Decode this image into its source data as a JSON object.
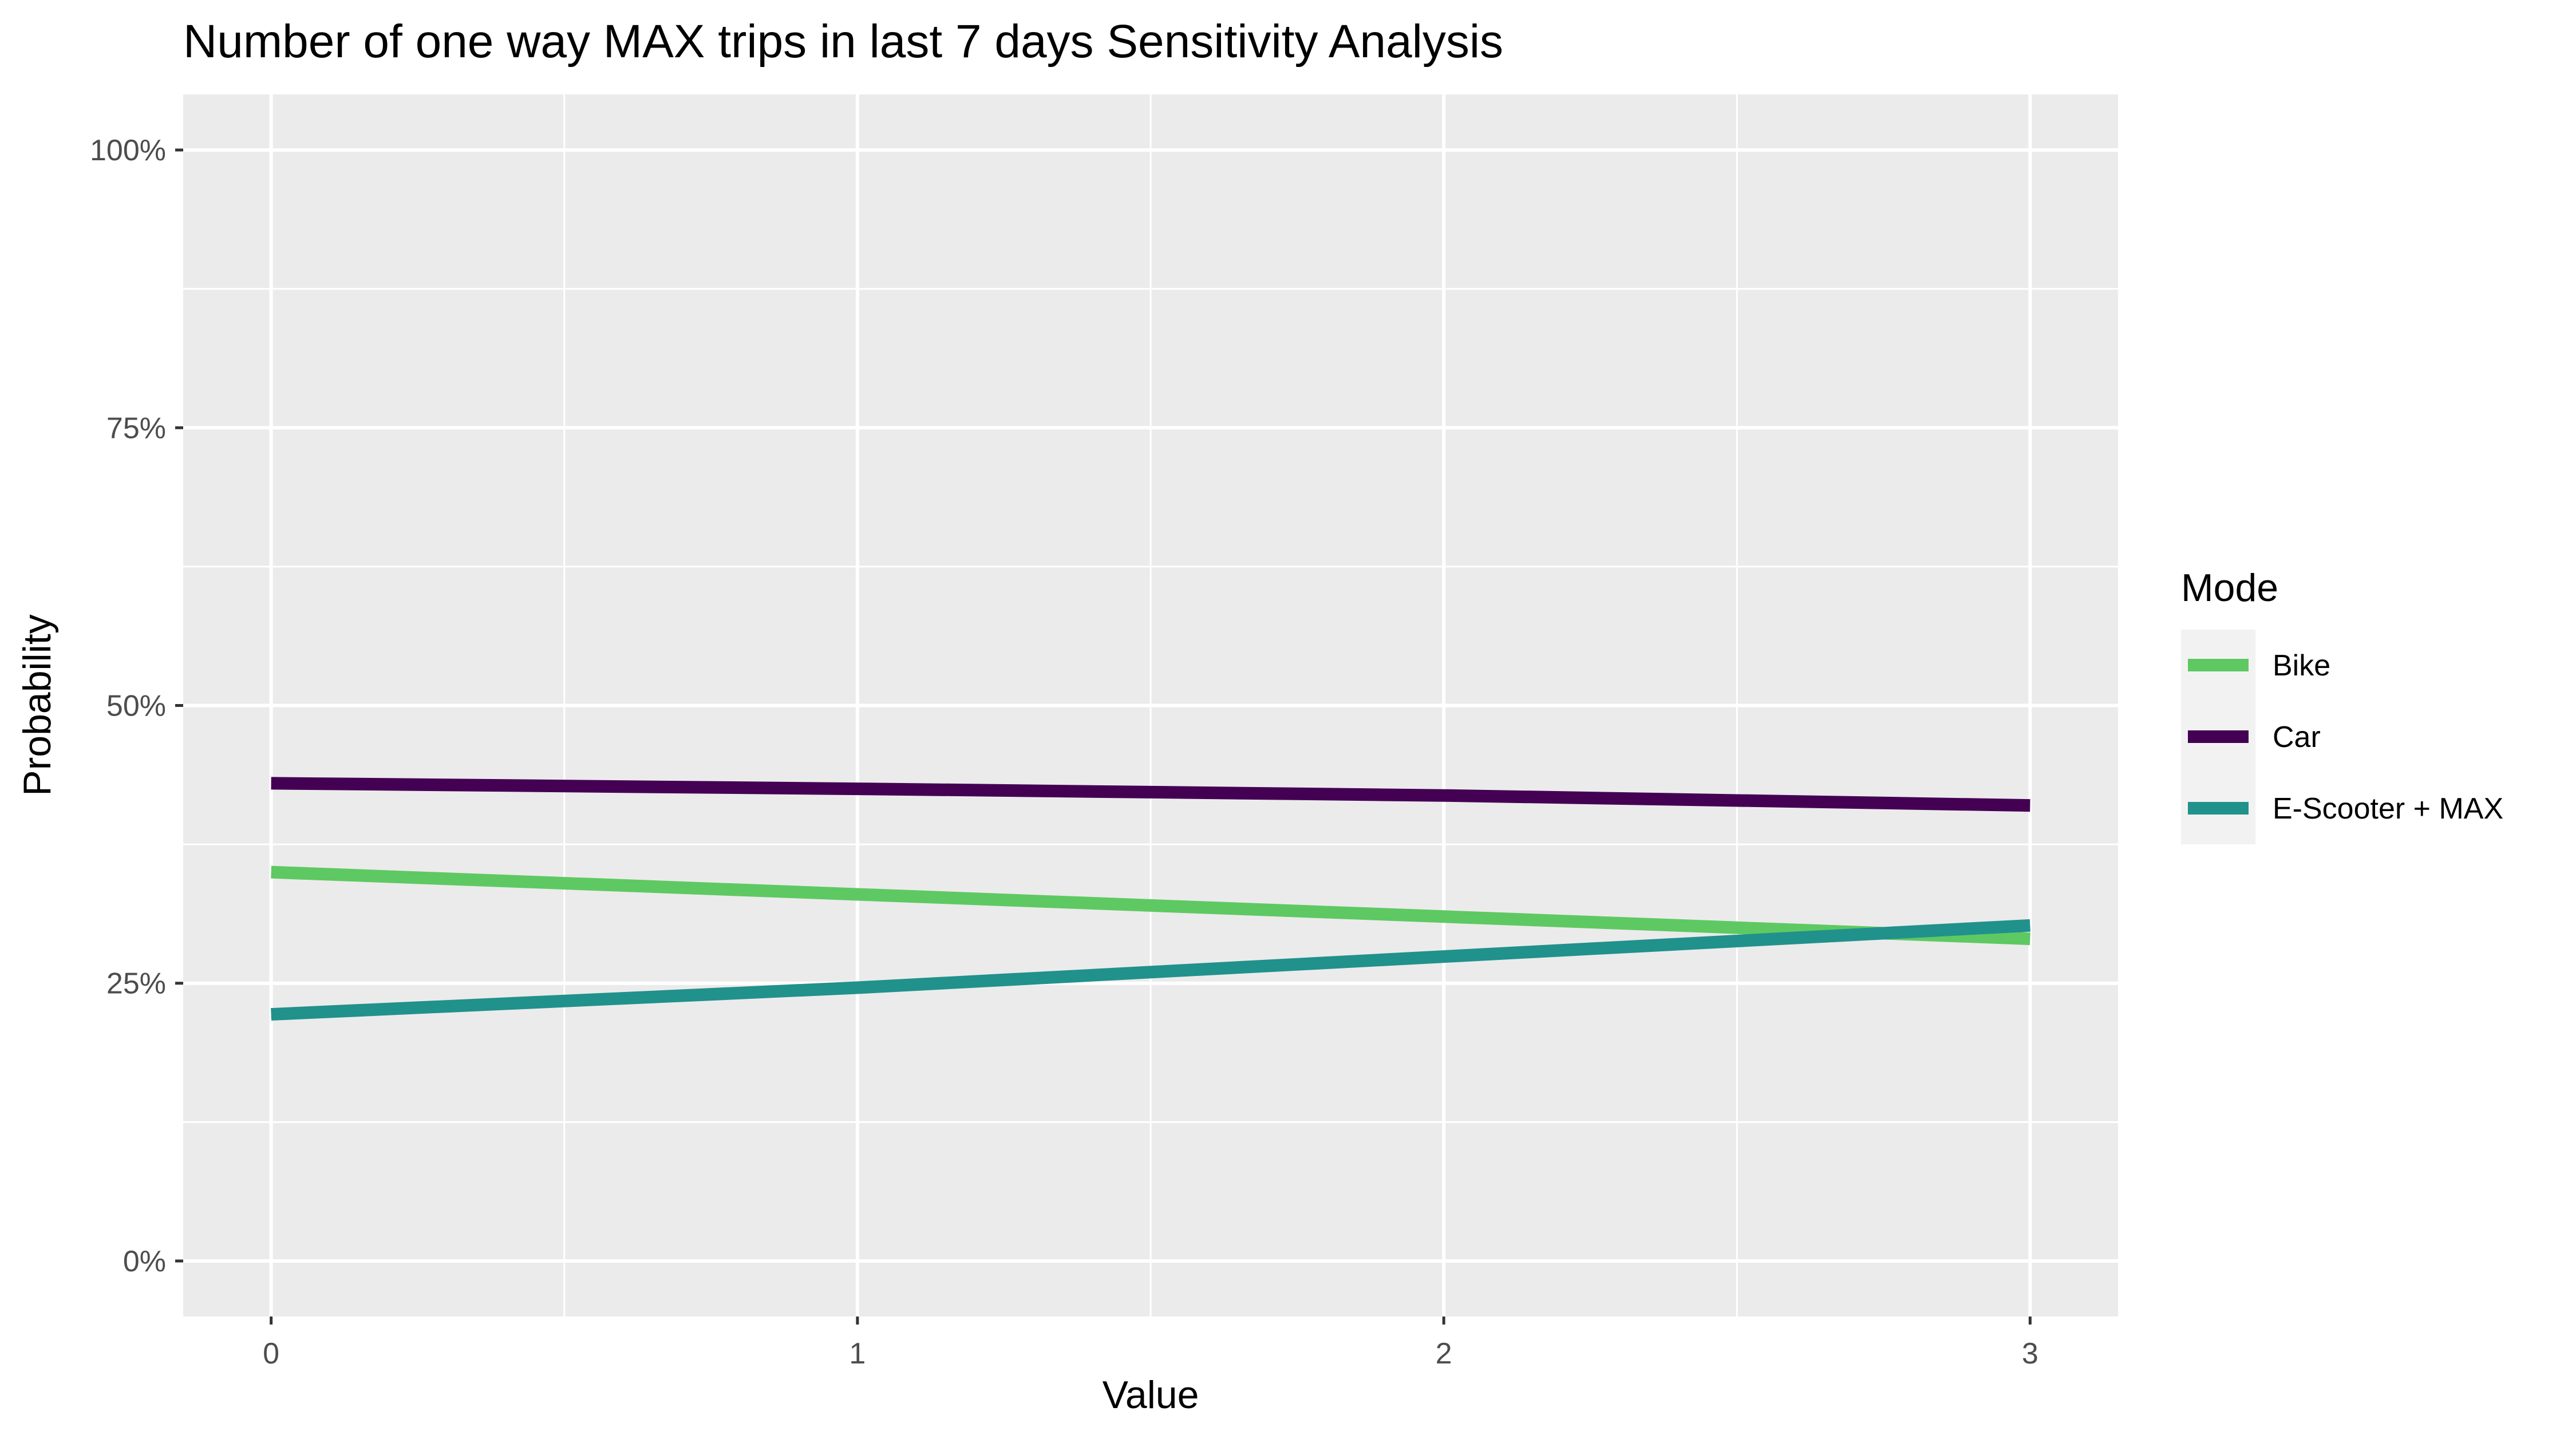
{
  "chart_data": {
    "type": "line",
    "title": "Number of one way MAX trips in last 7 days Sensitivity Analysis",
    "xlabel": "Value",
    "ylabel": "Probability",
    "xlim": [
      -0.15,
      3.15
    ],
    "ylim": [
      -0.05,
      1.05
    ],
    "x_ticks": [
      0,
      1,
      2,
      3
    ],
    "x_tick_labels": [
      "0",
      "1",
      "2",
      "3"
    ],
    "y_ticks": [
      0,
      0.25,
      0.5,
      0.75,
      1.0
    ],
    "y_tick_labels": [
      "0%",
      "25%",
      "50%",
      "75%",
      "100%"
    ],
    "grid": true,
    "legend": {
      "title": "Mode",
      "position": "right"
    },
    "x": [
      0,
      1,
      2,
      3
    ],
    "series": [
      {
        "name": "Bike",
        "color": "#5ec962",
        "values": [
          0.35,
          0.33,
          0.31,
          0.29
        ]
      },
      {
        "name": "Car",
        "color": "#440154",
        "values": [
          0.43,
          0.425,
          0.419,
          0.41
        ]
      },
      {
        "name": "E-Scooter + MAX",
        "color": "#21918c",
        "values": [
          0.222,
          0.246,
          0.274,
          0.302
        ]
      }
    ]
  }
}
